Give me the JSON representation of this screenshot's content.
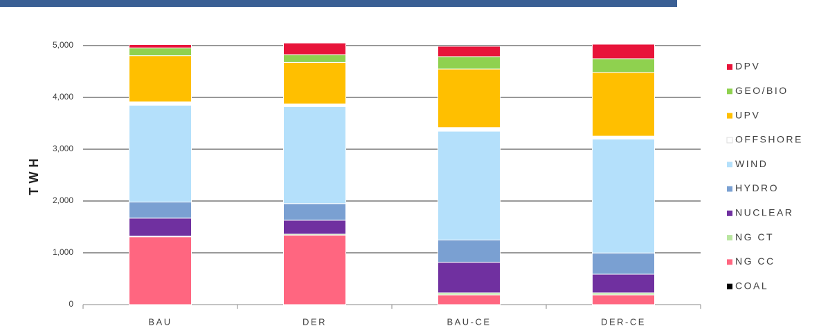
{
  "chart_data": {
    "type": "stacked_bar",
    "y_label": "TWH",
    "categories": [
      "BAU",
      "DER",
      "BAU-CE",
      "DER-CE"
    ],
    "series": [
      {
        "name": "COAL",
        "color": "#000000",
        "values": [
          0,
          0,
          0,
          0
        ]
      },
      {
        "name": "NG CC",
        "color": "#ff6680",
        "values": [
          1310,
          1340,
          187,
          187
        ]
      },
      {
        "name": "NG CT",
        "color": "#b9e6a0",
        "values": [
          10,
          20,
          40,
          40
        ]
      },
      {
        "name": "NUCLEAR",
        "color": "#7030a0",
        "values": [
          350,
          270,
          590,
          360
        ]
      },
      {
        "name": "HYDRO",
        "color": "#7aa0d2",
        "values": [
          310,
          320,
          430,
          410
        ]
      },
      {
        "name": "WIND",
        "color": "#b4e0fb",
        "values": [
          1870,
          1870,
          2100,
          2200
        ]
      },
      {
        "name": "OFFSHORE",
        "color": "#ffffff",
        "values": [
          65,
          55,
          70,
          55
        ]
      },
      {
        "name": "UPV",
        "color": "#ffbf00",
        "values": [
          890,
          800,
          1130,
          1230
        ]
      },
      {
        "name": "GEO/BIO",
        "color": "#8fd14f",
        "values": [
          150,
          150,
          240,
          265
        ]
      },
      {
        "name": "DPV",
        "color": "#e8143a",
        "values": [
          65,
          225,
          200,
          280
        ]
      }
    ],
    "ylim": [
      0,
      5000
    ],
    "yticks": [
      0,
      {
        "value": 1000,
        "label": "1,000"
      },
      {
        "value": 2000,
        "label": "2,000"
      },
      {
        "value": 3000,
        "label": "3,000"
      },
      {
        "value": 4000,
        "label": "4,000"
      },
      {
        "value": 5000,
        "label": "5,000"
      }
    ],
    "grid": true
  }
}
